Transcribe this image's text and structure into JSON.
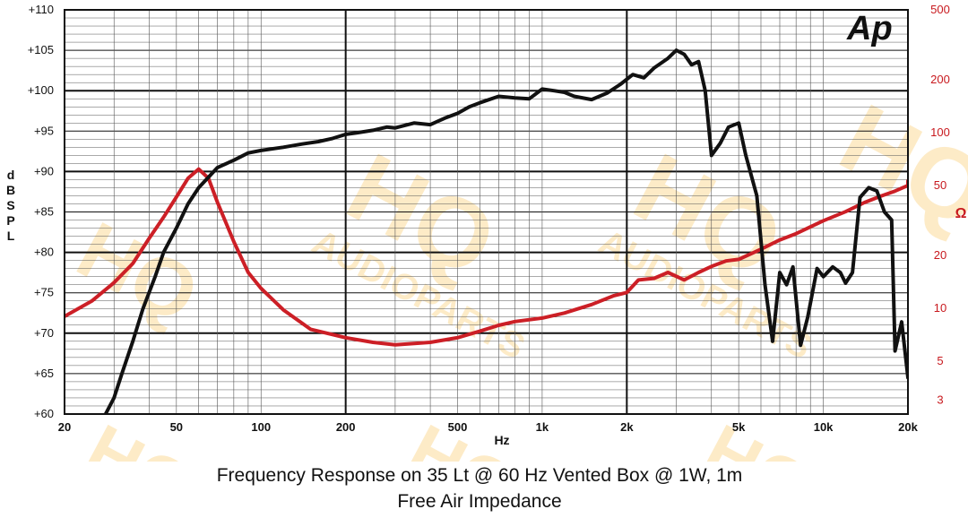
{
  "chart_data": {
    "type": "line",
    "logo": "Ap",
    "xlabel": "Hz",
    "ylabel_left": "dB SPL",
    "ylabel_right": "Ω",
    "xscale": "log",
    "xlim": [
      20,
      20000
    ],
    "x_ticks": [
      {
        "value": 20,
        "label": "20"
      },
      {
        "value": 50,
        "label": "50"
      },
      {
        "value": 100,
        "label": "100"
      },
      {
        "value": 200,
        "label": "200"
      },
      {
        "value": 500,
        "label": "500"
      },
      {
        "value": 1000,
        "label": "1k"
      },
      {
        "value": 2000,
        "label": "2k"
      },
      {
        "value": 5000,
        "label": "5k"
      },
      {
        "value": 10000,
        "label": "10k"
      },
      {
        "value": 20000,
        "label": "20k"
      }
    ],
    "ylim_left": [
      60,
      110
    ],
    "y_ticks_left": [
      {
        "value": 60,
        "label": "+60"
      },
      {
        "value": 65,
        "label": "+65"
      },
      {
        "value": 70,
        "label": "+70"
      },
      {
        "value": 75,
        "label": "+75"
      },
      {
        "value": 80,
        "label": "+80"
      },
      {
        "value": 85,
        "label": "+85"
      },
      {
        "value": 90,
        "label": "+90"
      },
      {
        "value": 95,
        "label": "+95"
      },
      {
        "value": 100,
        "label": "+100"
      },
      {
        "value": 105,
        "label": "+105"
      },
      {
        "value": 110,
        "label": "+110"
      }
    ],
    "yscale_right": "log",
    "ylim_right": [
      2.5,
      500
    ],
    "y_ticks_right": [
      {
        "value": 3,
        "label": "3"
      },
      {
        "value": 5,
        "label": "5"
      },
      {
        "value": 10,
        "label": "10"
      },
      {
        "value": 20,
        "label": "20"
      },
      {
        "value": 50,
        "label": "50"
      },
      {
        "value": 100,
        "label": "100"
      },
      {
        "value": 200,
        "label": "200"
      },
      {
        "value": 500,
        "label": "500"
      }
    ],
    "grid": true,
    "series": [
      {
        "name": "Frequency Response on 35 Lt @ 60 Hz Vented Box @ 1W, 1m",
        "axis": "left",
        "color": "#111111",
        "points": [
          [
            28,
            60
          ],
          [
            30,
            62
          ],
          [
            32,
            65
          ],
          [
            35,
            69
          ],
          [
            38,
            73
          ],
          [
            42,
            77
          ],
          [
            45,
            80
          ],
          [
            50,
            83
          ],
          [
            55,
            86
          ],
          [
            60,
            88
          ],
          [
            65,
            89.3
          ],
          [
            70,
            90.5
          ],
          [
            80,
            91.4
          ],
          [
            90,
            92.3
          ],
          [
            100,
            92.6
          ],
          [
            120,
            93
          ],
          [
            140,
            93.4
          ],
          [
            160,
            93.7
          ],
          [
            180,
            94.1
          ],
          [
            200,
            94.6
          ],
          [
            220,
            94.8
          ],
          [
            250,
            95.1
          ],
          [
            280,
            95.5
          ],
          [
            300,
            95.4
          ],
          [
            350,
            96
          ],
          [
            400,
            95.8
          ],
          [
            450,
            96.6
          ],
          [
            500,
            97.2
          ],
          [
            550,
            98
          ],
          [
            600,
            98.5
          ],
          [
            700,
            99.3
          ],
          [
            800,
            99.1
          ],
          [
            900,
            99
          ],
          [
            1000,
            100.2
          ],
          [
            1100,
            100
          ],
          [
            1200,
            99.8
          ],
          [
            1300,
            99.3
          ],
          [
            1500,
            98.9
          ],
          [
            1700,
            99.7
          ],
          [
            1900,
            100.8
          ],
          [
            2100,
            102
          ],
          [
            2300,
            101.6
          ],
          [
            2500,
            102.8
          ],
          [
            2800,
            104
          ],
          [
            3000,
            105
          ],
          [
            3200,
            104.5
          ],
          [
            3400,
            103.2
          ],
          [
            3600,
            103.6
          ],
          [
            3800,
            100
          ],
          [
            4000,
            92
          ],
          [
            4300,
            93.5
          ],
          [
            4600,
            95.5
          ],
          [
            5000,
            96
          ],
          [
            5300,
            92
          ],
          [
            5800,
            87
          ],
          [
            6200,
            76
          ],
          [
            6600,
            69
          ],
          [
            7000,
            77.5
          ],
          [
            7400,
            76
          ],
          [
            7800,
            78.2
          ],
          [
            8300,
            68.5
          ],
          [
            8800,
            72
          ],
          [
            9500,
            78
          ],
          [
            10000,
            77
          ],
          [
            10800,
            78.2
          ],
          [
            11500,
            77.5
          ],
          [
            12000,
            76.2
          ],
          [
            12700,
            77.5
          ],
          [
            13500,
            86.8
          ],
          [
            14500,
            88
          ],
          [
            15500,
            87.6
          ],
          [
            16500,
            85
          ],
          [
            17500,
            84
          ],
          [
            18000,
            67.8
          ],
          [
            19000,
            71.4
          ],
          [
            20500,
            64.5
          ],
          [
            21500,
            66.5
          ]
        ]
      },
      {
        "name": "Free Air Impedance",
        "axis": "right",
        "color": "#cc1f26",
        "points": [
          [
            20,
            9
          ],
          [
            25,
            11
          ],
          [
            30,
            14
          ],
          [
            35,
            18
          ],
          [
            40,
            25
          ],
          [
            45,
            33
          ],
          [
            50,
            43
          ],
          [
            55,
            55
          ],
          [
            60,
            62
          ],
          [
            65,
            55
          ],
          [
            70,
            40
          ],
          [
            80,
            24
          ],
          [
            90,
            16
          ],
          [
            100,
            13
          ],
          [
            120,
            9.8
          ],
          [
            150,
            7.6
          ],
          [
            200,
            6.8
          ],
          [
            250,
            6.4
          ],
          [
            300,
            6.2
          ],
          [
            400,
            6.4
          ],
          [
            500,
            6.8
          ],
          [
            600,
            7.4
          ],
          [
            700,
            8
          ],
          [
            800,
            8.4
          ],
          [
            1000,
            8.8
          ],
          [
            1200,
            9.4
          ],
          [
            1500,
            10.5
          ],
          [
            1800,
            11.8
          ],
          [
            2000,
            12.3
          ],
          [
            2200,
            14.5
          ],
          [
            2500,
            14.8
          ],
          [
            2800,
            16
          ],
          [
            3200,
            14.5
          ],
          [
            3600,
            16
          ],
          [
            4000,
            17.3
          ],
          [
            4500,
            18.6
          ],
          [
            5000,
            19
          ],
          [
            6000,
            21.7
          ],
          [
            7000,
            24.5
          ],
          [
            8000,
            26.6
          ],
          [
            10000,
            31.5
          ],
          [
            12000,
            35.5
          ],
          [
            14000,
            40
          ],
          [
            16000,
            43.5
          ],
          [
            18000,
            46.5
          ],
          [
            20000,
            50
          ],
          [
            21500,
            53
          ]
        ]
      }
    ]
  },
  "title": "Frequency Response on 35 Lt @ 60 Hz Vented Box @ 1W, 1m",
  "subtitle": "Free Air Impedance"
}
